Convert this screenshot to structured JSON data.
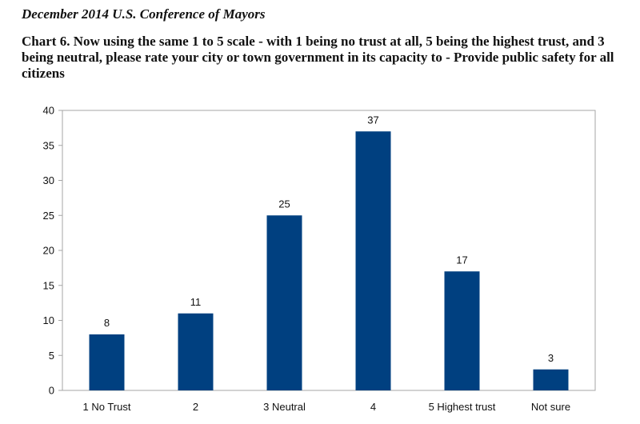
{
  "header": {
    "source": "December 2014 U.S. Conference of Mayors"
  },
  "chart_data": {
    "type": "bar",
    "title": "Chart 6. Now using the same 1 to 5 scale - with 1 being no trust at all, 5 being the highest trust, and 3 being neutral, please rate your city or town government in its capacity to - Provide public safety for all citizens",
    "categories": [
      "1 No Trust",
      "2",
      "3 Neutral",
      "4",
      "5 Highest trust",
      "Not sure"
    ],
    "values": [
      8,
      11,
      25,
      37,
      17,
      3
    ],
    "data_labels": [
      "8",
      "11",
      "25",
      "37",
      "17",
      "3"
    ],
    "ylim": [
      0,
      40
    ],
    "yticks": [
      0,
      5,
      10,
      15,
      20,
      25,
      30,
      35,
      40
    ],
    "ytick_labels": [
      "0",
      "5",
      "10",
      "15",
      "20",
      "25",
      "30",
      "35",
      "40"
    ],
    "grid": false,
    "legend": "none",
    "colors": {
      "bar": "#004080",
      "axis_border": "#a6a6a6"
    }
  }
}
